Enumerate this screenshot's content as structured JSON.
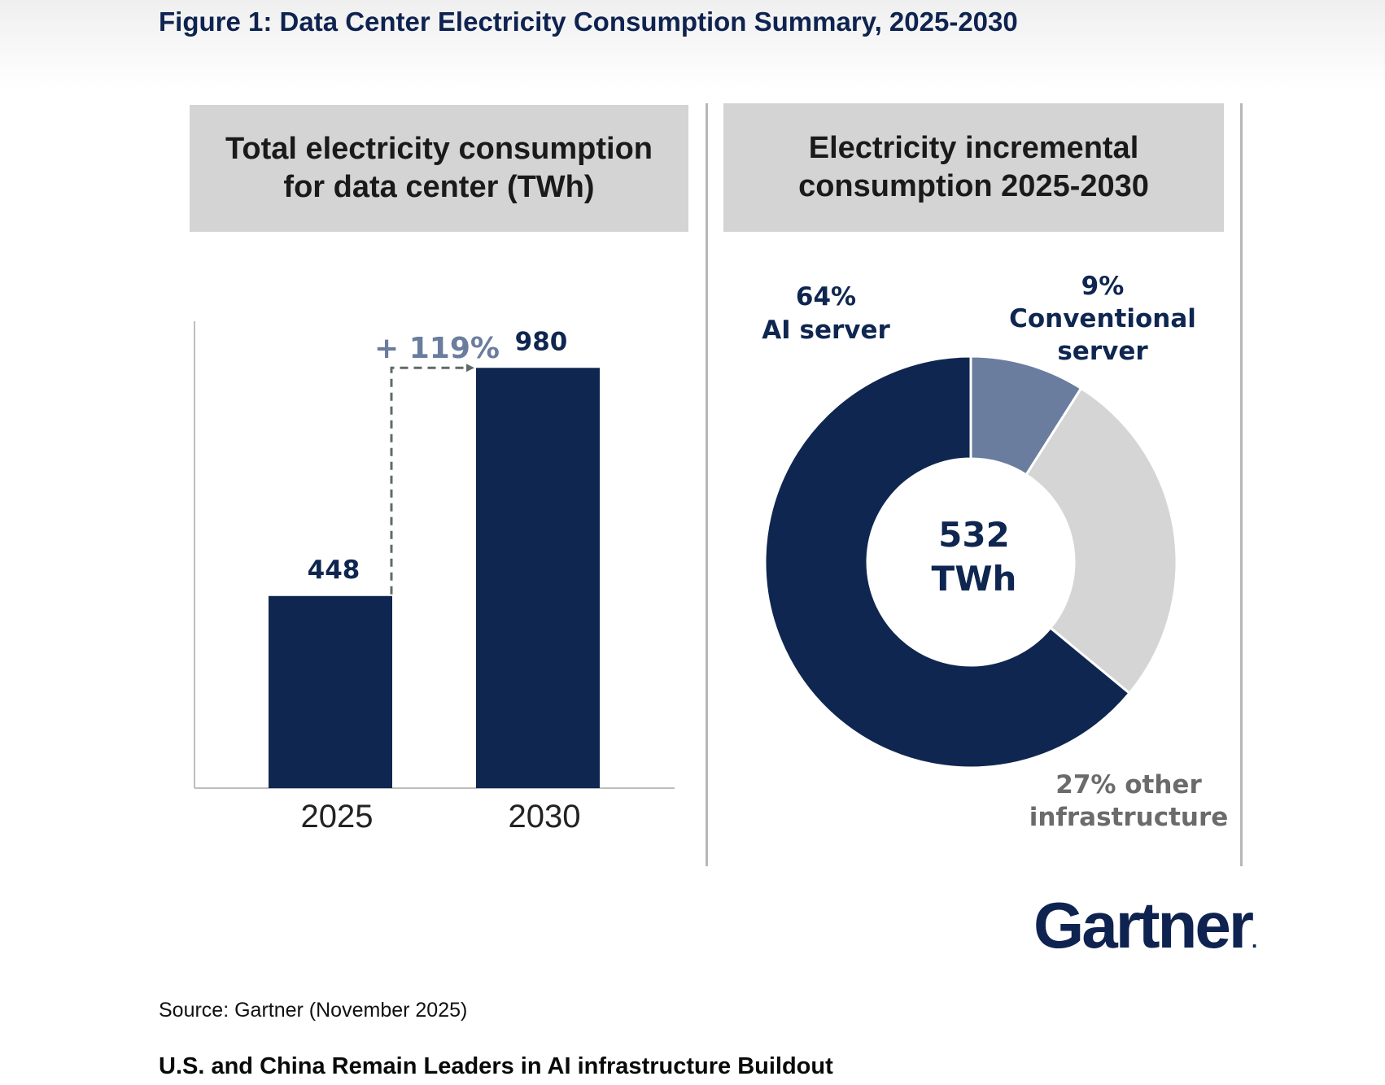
{
  "figure_title": "Figure 1: Data Center Electricity Consumption Summary, 2025-2030",
  "source": "Source: Gartner (November 2025)",
  "next_heading": "U.S. and China Remain Leaders in AI infrastructure Buildout",
  "logo_text": "Gartner",
  "logo_mark": ".",
  "colors": {
    "navy": "#0f2650",
    "slate": "#6a7d9f",
    "light_gray": "#d5d5d5",
    "growth_label": "#6a7d9f"
  },
  "chart_data": [
    {
      "type": "bar",
      "title": "Total electricity consumption\nfor data center (TWh)",
      "categories": [
        "2025",
        "2030"
      ],
      "values": [
        448,
        980
      ],
      "value_labels": [
        "448",
        "980"
      ],
      "ylim": [
        0,
        1100
      ],
      "grid": false,
      "annotation": "+ 119%"
    },
    {
      "type": "pie",
      "title": "Electricity incremental\nconsumption 2025-2030",
      "center_label": [
        "532",
        "TWh"
      ],
      "slices": [
        {
          "name": "Conventional server",
          "percent": 9,
          "label_lines": [
            "9%",
            "Conventional",
            "server"
          ],
          "color": "#6a7d9f"
        },
        {
          "name": "Other infrastructure",
          "percent": 27,
          "label_lines": [
            "27% other",
            "infrastructure"
          ],
          "color": "#d5d5d5"
        },
        {
          "name": "AI server",
          "percent": 64,
          "label_lines": [
            "64%",
            "AI server"
          ],
          "color": "#0f2650"
        }
      ]
    }
  ]
}
